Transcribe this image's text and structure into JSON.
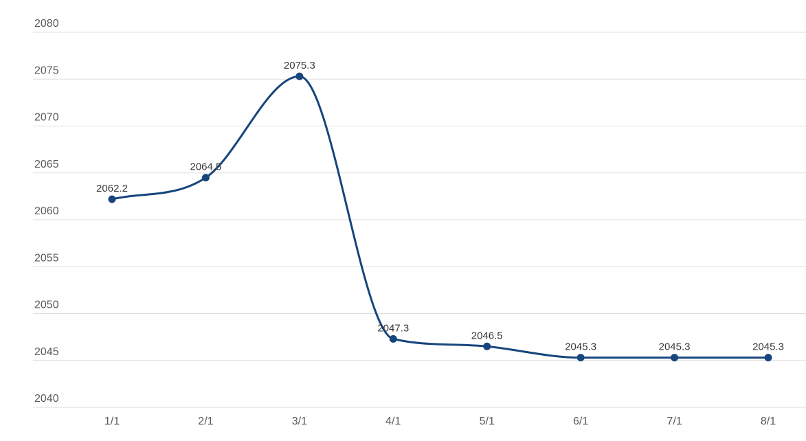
{
  "chart_data": {
    "type": "line",
    "title": "",
    "xlabel": "",
    "ylabel": "",
    "categories": [
      "1/1",
      "2/1",
      "3/1",
      "4/1",
      "5/1",
      "6/1",
      "7/1",
      "8/1"
    ],
    "series": [
      {
        "name": "values",
        "values": [
          2062.2,
          2064.5,
          2075.3,
          2047.3,
          2046.5,
          2045.3,
          2045.3,
          2045.3
        ]
      }
    ],
    "point_labels": [
      "2062.2",
      "2064.5",
      "2075.3",
      "2047.3",
      "2046.5",
      "2045.3",
      "2045.3",
      "2045.3"
    ],
    "y_ticks": [
      2040,
      2045,
      2050,
      2055,
      2060,
      2065,
      2070,
      2075,
      2080
    ],
    "ylim": [
      2040,
      2080
    ],
    "grid": true,
    "legend_position": "none",
    "curve": "smooth-monotone",
    "colors": {
      "line": "#17457d",
      "point": "#17457d",
      "grid": "#dedede",
      "axis_label": "#595959",
      "value_label": "#383838",
      "background": "#ffffff"
    }
  }
}
